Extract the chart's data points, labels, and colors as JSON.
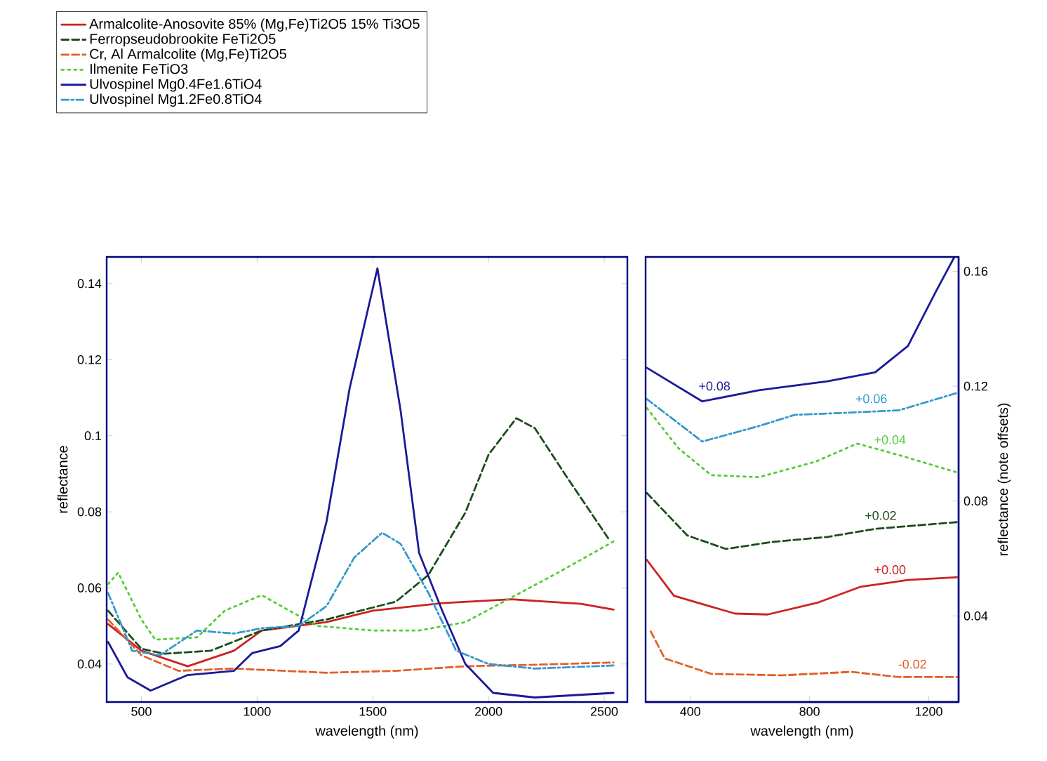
{
  "chart_data": [
    {
      "type": "line",
      "xlabel": "wavelength (nm)",
      "ylabel": "reflectance",
      "xlim": [
        350,
        2600
      ],
      "ylim": [
        0.03,
        0.147
      ],
      "xticks": [
        500,
        1000,
        1500,
        2000,
        2500
      ],
      "yticks": [
        0.04,
        0.06,
        0.08,
        0.1,
        0.12,
        0.14
      ],
      "legend": "top left",
      "series": [
        {
          "name": "Armalcolite-Anosovite  85% (Mg,Fe)Ti2O5 15% Ti3O5",
          "color": "#cc2222",
          "line_style": "solid",
          "x": [
            356,
            500,
            700,
            900,
            1020,
            1300,
            1500,
            1800,
            2100,
            2400,
            2540
          ],
          "values": [
            0.0505,
            0.0435,
            0.0394,
            0.0435,
            0.0488,
            0.051,
            0.054,
            0.056,
            0.057,
            0.0558,
            0.0543
          ]
        },
        {
          "name": "Ferropseudobrookite  FeTi2O5",
          "color": "#1a4d1a",
          "line_style": "dashed",
          "x": [
            356,
            500,
            600,
            800,
            1020,
            1300,
            1600,
            1740,
            1900,
            2000,
            2120,
            2200,
            2340,
            2520
          ],
          "values": [
            0.054,
            0.044,
            0.0427,
            0.0435,
            0.0488,
            0.0517,
            0.0564,
            0.0634,
            0.0798,
            0.095,
            0.1046,
            0.102,
            0.089,
            0.0728
          ]
        },
        {
          "name": "Cr, Al Armalcolite (Mg,Fe)Ti2O5",
          "color": "#e0602a",
          "line_style": "dashed",
          "x": [
            356,
            500,
            660,
            900,
            1300,
            1600,
            1900,
            2200,
            2540
          ],
          "values": [
            0.0517,
            0.0423,
            0.0382,
            0.0388,
            0.0377,
            0.0382,
            0.0394,
            0.0398,
            0.0404
          ]
        },
        {
          "name": "Ilmenite FeTiO3",
          "color": "#55cc33",
          "line_style": "dotted",
          "x": [
            356,
            400,
            500,
            560,
            740,
            860,
            1020,
            1140,
            1260,
            1500,
            1700,
            1900,
            2100,
            2300,
            2540
          ],
          "values": [
            0.061,
            0.064,
            0.0517,
            0.0464,
            0.047,
            0.054,
            0.0581,
            0.054,
            0.05,
            0.0488,
            0.0488,
            0.051,
            0.0575,
            0.064,
            0.0722
          ]
        },
        {
          "name": "Ulvospinel Mg0.4Fe1.6TiO4",
          "color": "#1a1a99",
          "line_style": "solid",
          "x": [
            356,
            440,
            540,
            700,
            900,
            980,
            1100,
            1180,
            1300,
            1400,
            1520,
            1620,
            1700,
            1800,
            1900,
            2020,
            2200,
            2540
          ],
          "values": [
            0.0458,
            0.0365,
            0.033,
            0.0371,
            0.0382,
            0.0429,
            0.0447,
            0.0488,
            0.0774,
            0.1125,
            0.144,
            0.1067,
            0.0692,
            0.054,
            0.04,
            0.0324,
            0.0312,
            0.0324
          ]
        },
        {
          "name": "Ulvospinel Mg1.2Fe0.8TiO4",
          "color": "#3399cc",
          "line_style": "dashdot",
          "x": [
            356,
            460,
            580,
            740,
            900,
            1020,
            1180,
            1300,
            1420,
            1540,
            1620,
            1740,
            1860,
            2000,
            2200,
            2540
          ],
          "values": [
            0.0587,
            0.0435,
            0.0423,
            0.0488,
            0.048,
            0.0494,
            0.05,
            0.0552,
            0.068,
            0.0745,
            0.0716,
            0.0587,
            0.0435,
            0.04,
            0.0388,
            0.0396
          ]
        }
      ]
    },
    {
      "type": "line",
      "xlabel": "wavelength (nm)",
      "ylabel": "reflectance (note offsets)",
      "xlim": [
        250,
        1300
      ],
      "ylim": [
        0.01,
        0.165
      ],
      "xticks": [
        400,
        800,
        1200
      ],
      "yticks": [
        0.04,
        0.08,
        0.12,
        0.16
      ],
      "series": [
        {
          "color": "#cc2222",
          "line_style": "solid",
          "x": [
            254,
            345,
            550,
            660,
            830,
            970,
            1130,
            1300
          ],
          "values": [
            0.0595,
            0.047,
            0.0408,
            0.0405,
            0.0447,
            0.0501,
            0.0525,
            0.0535
          ]
        },
        {
          "color": "#1a4d1a",
          "line_style": "dashed",
          "x": [
            254,
            390,
            520,
            670,
            860,
            1020,
            1300
          ],
          "values": [
            0.0828,
            0.068,
            0.0633,
            0.0657,
            0.0675,
            0.0703,
            0.0727
          ]
        },
        {
          "color": "#e0602a",
          "line_style": "dashed",
          "x": [
            267,
            314,
            470,
            710,
            940,
            1100,
            1300
          ],
          "values": [
            0.0346,
            0.0252,
            0.0198,
            0.0193,
            0.0205,
            0.0187,
            0.0187
          ]
        },
        {
          "color": "#55cc33",
          "line_style": "dotted",
          "x": [
            254,
            360,
            470,
            630,
            820,
            960,
            1100,
            1300
          ],
          "values": [
            0.1124,
            0.0984,
            0.089,
            0.0883,
            0.0937,
            0.1,
            0.096,
            0.0898
          ]
        },
        {
          "color": "#1a1a99",
          "line_style": "solid",
          "x": [
            254,
            440,
            630,
            860,
            1020,
            1130,
            1224,
            1286
          ],
          "values": [
            0.1264,
            0.1147,
            0.1186,
            0.1217,
            0.1248,
            0.134,
            0.153,
            0.165
          ]
        },
        {
          "color": "#3399cc",
          "line_style": "dashdot",
          "x": [
            254,
            440,
            630,
            750,
            940,
            1100,
            1300
          ],
          "values": [
            0.1155,
            0.1007,
            0.1061,
            0.11,
            0.1108,
            0.1116,
            0.1178
          ]
        }
      ],
      "annotations": [
        "+0.00",
        "+0.02",
        "-0.02",
        "+0.04",
        "+0.08",
        "+0.06"
      ]
    }
  ]
}
